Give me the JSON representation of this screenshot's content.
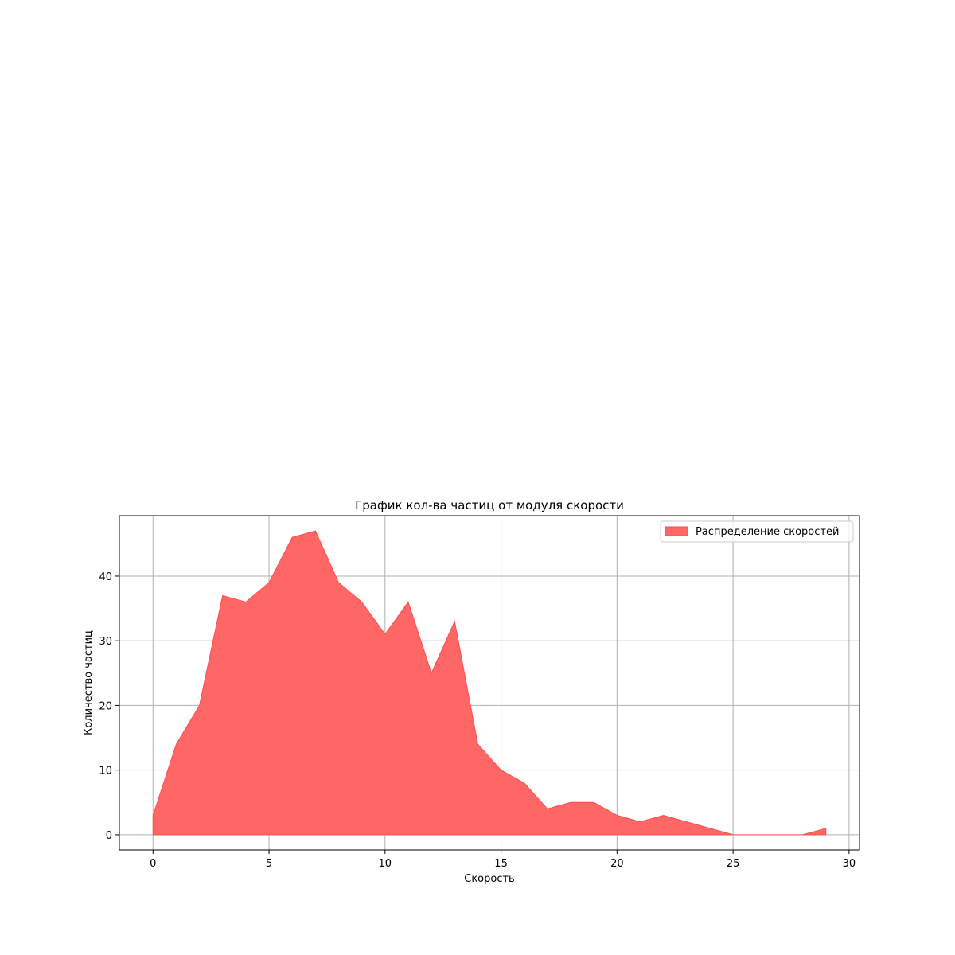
{
  "chart_data": {
    "type": "area",
    "title": "График кол-ва частиц от модуля скорости",
    "xlabel": "Скорость",
    "ylabel": "Количество частиц",
    "x": [
      0,
      1,
      2,
      3,
      4,
      5,
      6,
      7,
      8,
      9,
      10,
      11,
      12,
      13,
      14,
      15,
      16,
      17,
      18,
      19,
      20,
      21,
      22,
      23,
      24,
      25,
      26,
      27,
      28,
      29
    ],
    "series": [
      {
        "name": "Распределение скоростей",
        "values": [
          3,
          14,
          20,
          37,
          36,
          39,
          46,
          47,
          39,
          36,
          31,
          36,
          25,
          33,
          14,
          10,
          8,
          4,
          5,
          5,
          3,
          2,
          3,
          2,
          1,
          0,
          0,
          0,
          0,
          1
        ],
        "color": "#ff6666",
        "edge_color": "#ff4d4d"
      }
    ],
    "xlim": [
      -1.45,
      30.45
    ],
    "ylim": [
      -2.35,
      49.35
    ],
    "xticks": [
      0,
      5,
      10,
      15,
      20,
      25,
      30
    ],
    "yticks": [
      0,
      10,
      20,
      30,
      40
    ],
    "grid": true,
    "legend_position": "top-right"
  }
}
